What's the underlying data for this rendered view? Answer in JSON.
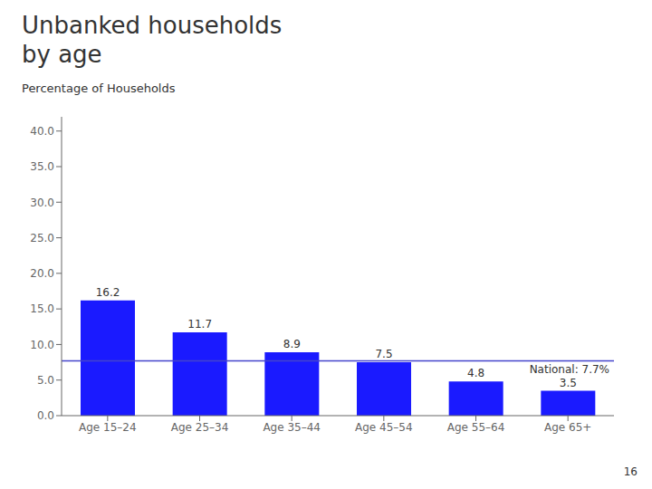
{
  "chart_data": {
    "type": "bar",
    "title": "Unbanked households\nby age",
    "ylabel": "Percentage of Households",
    "categories": [
      "Age 15–24",
      "Age 25–34",
      "Age 35–44",
      "Age 45–54",
      "Age 55–64",
      "Age 65+"
    ],
    "values": [
      16.2,
      11.7,
      8.9,
      7.5,
      4.8,
      3.5
    ],
    "color": "#1a1aff",
    "ylim": [
      0,
      42
    ],
    "yticks": [
      {
        "value": 0,
        "label": "0.0"
      },
      {
        "value": 5,
        "label": "5.0"
      },
      {
        "value": 10,
        "label": "10.0"
      },
      {
        "value": 15,
        "label": "15.0"
      },
      {
        "value": 20,
        "label": "20.0"
      },
      {
        "value": 25,
        "label": "25.0"
      },
      {
        "value": 30,
        "label": "30.0"
      },
      {
        "value": 35,
        "label": "35.0"
      },
      {
        "value": 40,
        "label": "40.0"
      }
    ],
    "reference_line": {
      "value": 7.7,
      "label": "National: 7.7%",
      "color": "#4444cc"
    },
    "annotations": [
      {
        "text": "16"
      }
    ],
    "grid": false,
    "data_labels": true
  }
}
